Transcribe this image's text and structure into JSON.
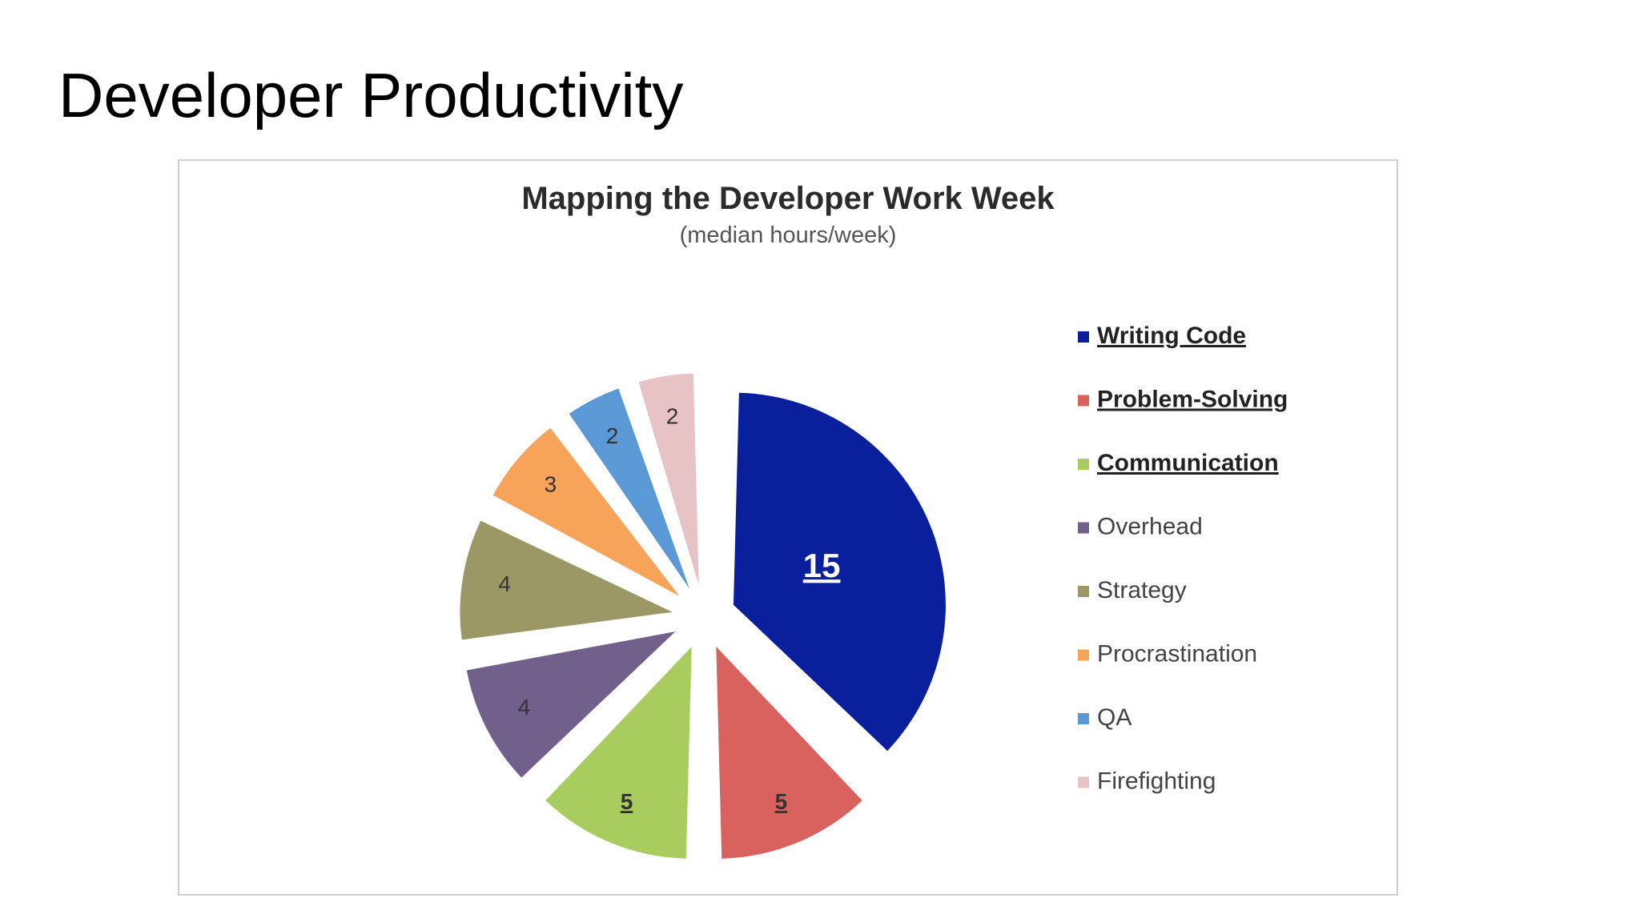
{
  "slide": {
    "title": "Developer Productivity"
  },
  "chart_data": {
    "type": "pie",
    "title": "Mapping the Developer Work Week",
    "subtitle": "(median hours/week)",
    "legend_position": "right",
    "exploded": true,
    "slices": [
      {
        "label": "Writing Code",
        "value": 15,
        "color": "#0a1f9b",
        "emphasized": true
      },
      {
        "label": "Problem-Solving",
        "value": 5,
        "color": "#d9625e",
        "emphasized": true
      },
      {
        "label": "Communication",
        "value": 5,
        "color": "#a8cc5d",
        "emphasized": true
      },
      {
        "label": "Overhead",
        "value": 4,
        "color": "#715f8c",
        "emphasized": false
      },
      {
        "label": "Strategy",
        "value": 4,
        "color": "#9c9866",
        "emphasized": false
      },
      {
        "label": "Procrastination",
        "value": 3,
        "color": "#f7a45a",
        "emphasized": false
      },
      {
        "label": "QA",
        "value": 2,
        "color": "#5b98d6",
        "emphasized": false
      },
      {
        "label": "Firefighting",
        "value": 2,
        "color": "#e8c3c5",
        "emphasized": false
      }
    ]
  }
}
